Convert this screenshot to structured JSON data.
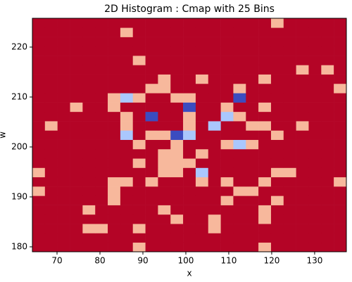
{
  "chart_data": {
    "type": "histogram2d",
    "title": "2D Histogram : Cmap with 25 Bins",
    "x_label": "x",
    "y_label": "w",
    "x_bins": [
      64.26,
      67.18,
      70.11,
      73.04,
      75.96,
      78.89,
      81.81,
      84.74,
      87.66,
      90.59,
      93.51,
      96.44,
      99.36,
      102.29,
      105.21,
      108.14,
      111.06,
      113.99,
      116.91,
      119.84,
      122.76,
      125.69,
      128.61,
      131.54,
      134.46,
      137.39
    ],
    "y_bins": [
      179.01,
      180.88,
      182.75,
      184.62,
      186.49,
      188.36,
      190.23,
      192.1,
      193.97,
      195.84,
      197.71,
      199.58,
      201.45,
      203.32,
      205.19,
      207.06,
      208.93,
      210.8,
      212.68,
      214.55,
      216.42,
      218.29,
      220.16,
      222.03,
      223.9,
      225.77
    ],
    "counts": [
      [
        0,
        0,
        0,
        0,
        0,
        0,
        0,
        0,
        1,
        0,
        0,
        0,
        0,
        0,
        0,
        0,
        0,
        0,
        1,
        0,
        0,
        0,
        0,
        0,
        0
      ],
      [
        0,
        0,
        0,
        0,
        0,
        0,
        0,
        0,
        0,
        0,
        0,
        0,
        0,
        0,
        0,
        0,
        0,
        0,
        0,
        0,
        0,
        0,
        0,
        0,
        0
      ],
      [
        0,
        0,
        0,
        0,
        1,
        1,
        0,
        0,
        1,
        0,
        0,
        0,
        0,
        0,
        1,
        0,
        0,
        0,
        0,
        0,
        0,
        0,
        0,
        0,
        0
      ],
      [
        0,
        0,
        0,
        0,
        0,
        0,
        0,
        0,
        0,
        0,
        0,
        1,
        0,
        0,
        1,
        0,
        0,
        0,
        1,
        0,
        0,
        0,
        0,
        0,
        0
      ],
      [
        0,
        0,
        0,
        0,
        1,
        0,
        0,
        0,
        0,
        0,
        1,
        0,
        0,
        0,
        0,
        0,
        0,
        0,
        1,
        0,
        0,
        0,
        0,
        0,
        0
      ],
      [
        0,
        0,
        0,
        0,
        0,
        0,
        1,
        0,
        0,
        0,
        0,
        0,
        0,
        0,
        0,
        1,
        0,
        0,
        0,
        1,
        0,
        0,
        0,
        0,
        0
      ],
      [
        1,
        0,
        0,
        0,
        0,
        0,
        1,
        0,
        0,
        0,
        0,
        0,
        0,
        0,
        0,
        0,
        1,
        1,
        0,
        0,
        0,
        0,
        0,
        0,
        0
      ],
      [
        0,
        0,
        0,
        0,
        0,
        0,
        1,
        1,
        0,
        1,
        0,
        0,
        0,
        1,
        0,
        1,
        0,
        0,
        1,
        0,
        0,
        0,
        0,
        0,
        1
      ],
      [
        1,
        0,
        0,
        0,
        0,
        0,
        0,
        0,
        0,
        0,
        1,
        1,
        0,
        2,
        0,
        0,
        0,
        0,
        0,
        1,
        1,
        0,
        0,
        0,
        0
      ],
      [
        0,
        0,
        0,
        0,
        0,
        0,
        0,
        0,
        1,
        0,
        1,
        1,
        1,
        0,
        0,
        0,
        0,
        0,
        0,
        0,
        0,
        0,
        0,
        0,
        0
      ],
      [
        0,
        0,
        0,
        0,
        0,
        0,
        0,
        0,
        0,
        0,
        1,
        1,
        0,
        1,
        0,
        0,
        0,
        0,
        0,
        0,
        0,
        0,
        0,
        0,
        0
      ],
      [
        0,
        0,
        0,
        0,
        0,
        0,
        0,
        0,
        1,
        0,
        0,
        1,
        0,
        0,
        0,
        1,
        2,
        1,
        0,
        0,
        0,
        0,
        0,
        0,
        0
      ],
      [
        0,
        0,
        0,
        0,
        0,
        0,
        0,
        2,
        0,
        1,
        1,
        3,
        2,
        0,
        0,
        0,
        0,
        0,
        0,
        1,
        0,
        0,
        0,
        0,
        0
      ],
      [
        0,
        1,
        0,
        0,
        0,
        0,
        0,
        1,
        0,
        0,
        0,
        0,
        1,
        0,
        2,
        0,
        0,
        1,
        1,
        0,
        0,
        1,
        0,
        0,
        0
      ],
      [
        0,
        0,
        0,
        0,
        0,
        0,
        0,
        1,
        0,
        3,
        0,
        0,
        1,
        0,
        0,
        2,
        1,
        0,
        0,
        0,
        0,
        0,
        0,
        0,
        0
      ],
      [
        0,
        0,
        0,
        1,
        0,
        0,
        1,
        0,
        0,
        0,
        0,
        0,
        3,
        0,
        0,
        1,
        0,
        0,
        1,
        0,
        0,
        0,
        0,
        0,
        0
      ],
      [
        0,
        0,
        0,
        0,
        0,
        0,
        1,
        2,
        1,
        0,
        0,
        1,
        1,
        0,
        0,
        0,
        3,
        0,
        0,
        0,
        0,
        0,
        0,
        0,
        0
      ],
      [
        0,
        0,
        0,
        0,
        0,
        0,
        0,
        0,
        0,
        1,
        1,
        0,
        0,
        0,
        0,
        0,
        1,
        0,
        0,
        0,
        0,
        0,
        0,
        0,
        1
      ],
      [
        0,
        0,
        0,
        0,
        0,
        0,
        0,
        0,
        0,
        0,
        1,
        0,
        0,
        1,
        0,
        0,
        0,
        0,
        1,
        0,
        0,
        0,
        0,
        0,
        0
      ],
      [
        0,
        0,
        0,
        0,
        0,
        0,
        0,
        0,
        0,
        0,
        0,
        0,
        0,
        0,
        0,
        0,
        0,
        0,
        0,
        0,
        0,
        1,
        0,
        1,
        0
      ],
      [
        0,
        0,
        0,
        0,
        0,
        0,
        0,
        0,
        1,
        0,
        0,
        0,
        0,
        0,
        0,
        0,
        0,
        0,
        0,
        0,
        0,
        0,
        0,
        0,
        0
      ],
      [
        0,
        0,
        0,
        0,
        0,
        0,
        0,
        0,
        0,
        0,
        0,
        0,
        0,
        0,
        0,
        0,
        0,
        0,
        0,
        0,
        0,
        0,
        0,
        0,
        0
      ],
      [
        0,
        0,
        0,
        0,
        0,
        0,
        0,
        0,
        0,
        0,
        0,
        0,
        0,
        0,
        0,
        0,
        0,
        0,
        0,
        0,
        0,
        0,
        0,
        0,
        0
      ],
      [
        0,
        0,
        0,
        0,
        0,
        0,
        0,
        1,
        0,
        0,
        0,
        0,
        0,
        0,
        0,
        0,
        0,
        0,
        0,
        0,
        0,
        0,
        0,
        0,
        0
      ],
      [
        0,
        0,
        0,
        0,
        0,
        0,
        0,
        0,
        0,
        0,
        0,
        0,
        0,
        0,
        0,
        0,
        0,
        0,
        0,
        1,
        0,
        0,
        0,
        0,
        0
      ]
    ],
    "cmap": "coolwarm_r",
    "clim": [
      0,
      3
    ],
    "colors": [
      "#b40426",
      "#f7b89c",
      "#aac7fd",
      "#3b4cc0"
    ],
    "xlim": [
      64.26,
      137.39
    ],
    "ylim": [
      179.01,
      225.77
    ],
    "xticks": [
      70,
      80,
      90,
      100,
      110,
      120,
      130
    ],
    "yticks": [
      180,
      190,
      200,
      210,
      220
    ]
  }
}
